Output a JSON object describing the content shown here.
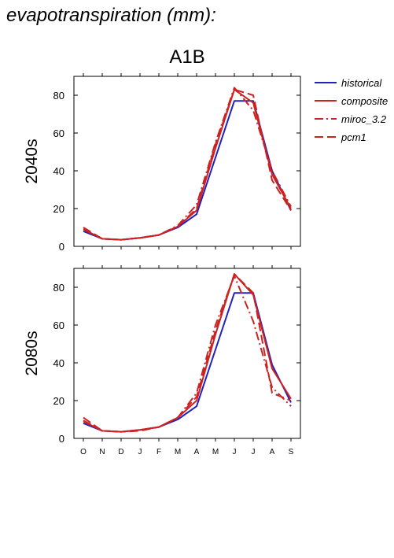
{
  "page_title": "evapotranspiration (mm):",
  "chart_data": [
    {
      "type": "line",
      "title": "A1B",
      "ylabel": "2040s",
      "xlabel": "",
      "categories": [
        "O",
        "N",
        "D",
        "J",
        "F",
        "M",
        "A",
        "M",
        "J",
        "J",
        "A",
        "S"
      ],
      "ylim": [
        0,
        90
      ],
      "yticks": [
        0,
        20,
        40,
        60,
        80
      ],
      "grid": false,
      "legend_position": "right",
      "series": [
        {
          "name": "historical",
          "color": "#2222bb",
          "dash": "solid",
          "values": [
            8,
            4,
            3.5,
            4.5,
            6,
            10,
            17,
            47,
            77,
            77,
            40,
            19
          ]
        },
        {
          "name": "composite",
          "color": "#cc2222",
          "dash": "solid",
          "values": [
            9,
            4,
            3.5,
            4.5,
            6,
            10.5,
            19,
            52,
            83,
            76,
            38,
            20
          ]
        },
        {
          "name": "miroc_3.2",
          "color": "#cc2222",
          "dash": "dashdot",
          "values": [
            9,
            4,
            3.5,
            4.5,
            6,
            11,
            22,
            55,
            84,
            72,
            40,
            21
          ]
        },
        {
          "name": "pcm1",
          "color": "#cc2222",
          "dash": "dash",
          "values": [
            10,
            4,
            3.5,
            4.5,
            6,
            10.5,
            20,
            54,
            83,
            80,
            35,
            19
          ]
        }
      ]
    },
    {
      "type": "line",
      "title": "",
      "ylabel": "2080s",
      "xlabel": "",
      "categories": [
        "O",
        "N",
        "D",
        "J",
        "F",
        "M",
        "A",
        "M",
        "J",
        "J",
        "A",
        "S"
      ],
      "ylim": [
        0,
        90
      ],
      "yticks": [
        0,
        20,
        40,
        60,
        80
      ],
      "grid": false,
      "series": [
        {
          "name": "historical",
          "color": "#2222bb",
          "dash": "solid",
          "values": [
            8,
            4,
            3.5,
            4.5,
            6,
            10,
            17,
            47,
            77,
            77,
            39,
            19
          ]
        },
        {
          "name": "composite",
          "color": "#cc2222",
          "dash": "solid",
          "values": [
            9,
            4,
            3.5,
            4.5,
            6,
            11,
            20,
            55,
            87,
            76,
            37,
            21
          ]
        },
        {
          "name": "miroc_3.2",
          "color": "#cc2222",
          "dash": "dashdot",
          "values": [
            9.5,
            4,
            3.5,
            4.5,
            6,
            11,
            24,
            60,
            86,
            62,
            27,
            17
          ]
        },
        {
          "name": "pcm1",
          "color": "#cc2222",
          "dash": "dash",
          "values": [
            11,
            4,
            3.5,
            4,
            6,
            11,
            22,
            57,
            87,
            77,
            24,
            20
          ]
        }
      ]
    }
  ]
}
